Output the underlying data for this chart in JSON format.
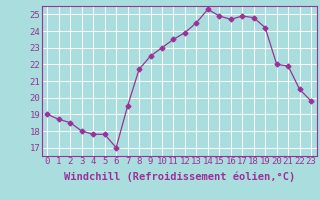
{
  "x": [
    0,
    1,
    2,
    3,
    4,
    5,
    6,
    7,
    8,
    9,
    10,
    11,
    12,
    13,
    14,
    15,
    16,
    17,
    18,
    19,
    20,
    21,
    22,
    23
  ],
  "y": [
    19.0,
    18.7,
    18.5,
    18.0,
    17.8,
    17.8,
    17.0,
    19.5,
    21.7,
    22.5,
    23.0,
    23.5,
    23.9,
    24.5,
    25.3,
    24.9,
    24.7,
    24.9,
    24.8,
    24.2,
    22.0,
    21.9,
    20.5,
    19.8
  ],
  "line_color": "#993399",
  "marker": "D",
  "marker_size": 2.5,
  "bg_color": "#aadddd",
  "grid_color": "#bbdddd",
  "xlabel": "Windchill (Refroidissement éolien,°C)",
  "xlim": [
    -0.5,
    23.5
  ],
  "ylim": [
    16.5,
    25.5
  ],
  "yticks": [
    17,
    18,
    19,
    20,
    21,
    22,
    23,
    24,
    25
  ],
  "xticks": [
    0,
    1,
    2,
    3,
    4,
    5,
    6,
    7,
    8,
    9,
    10,
    11,
    12,
    13,
    14,
    15,
    16,
    17,
    18,
    19,
    20,
    21,
    22,
    23
  ],
  "tick_label_fontsize": 6.5,
  "xlabel_fontsize": 7.5,
  "label_color": "#993399",
  "tick_color": "#993399",
  "spine_color": "#993399"
}
